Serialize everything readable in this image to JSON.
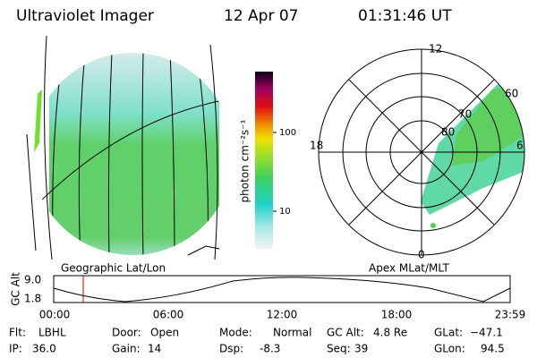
{
  "header": {
    "title": "Ultraviolet Imager",
    "date": "12 Apr 07",
    "time": "01:31:46 UT"
  },
  "colorbar": {
    "label": "photon cm⁻²s⁻¹",
    "ticks": [
      "100",
      "10"
    ]
  },
  "left_panel": {
    "label": "Geographic Lat/Lon"
  },
  "right_panel": {
    "label": "Apex MLat/MLT",
    "mlt_labels": [
      "12",
      "18",
      "6",
      "0"
    ],
    "mlat_labels": [
      "60",
      "70",
      "80"
    ]
  },
  "orbit": {
    "ylabel": "GC Alt",
    "yticks": [
      "9.0",
      "1.8"
    ],
    "xticks": [
      "00:00",
      "06:00",
      "12:00",
      "18:00",
      "23:59"
    ]
  },
  "footer": {
    "rows": [
      [
        {
          "label": "Flt:",
          "value": "LBHL"
        },
        {
          "label": "Door:",
          "value": "Open"
        },
        {
          "label": "Mode:",
          "value": "Normal"
        },
        {
          "label": "GC Alt:",
          "value": "4.8 Re"
        },
        {
          "label": "GLat:",
          "value": "−47.1"
        }
      ],
      [
        {
          "label": "IP:",
          "value": "36.0"
        },
        {
          "label": "Gain:",
          "value": "14"
        },
        {
          "label": "Dsp:",
          "value": "-8.3"
        },
        {
          "label": "Seq:",
          "value": "39"
        },
        {
          "label": "GLon:",
          "value": "94.5"
        }
      ]
    ]
  }
}
